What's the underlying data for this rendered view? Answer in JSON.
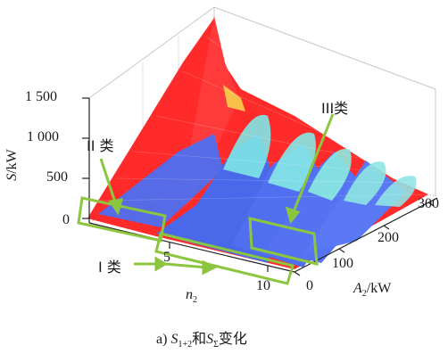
{
  "figure": {
    "caption_prefix": "a) ",
    "caption_s1": "S",
    "caption_s1_sub": "1+2",
    "caption_mid": "和",
    "caption_s2": "S",
    "caption_s2_sub": "Σ",
    "caption_suffix": "变化"
  },
  "axes": {
    "z_label_var": "S",
    "z_label_unit": "/kW",
    "x_label_var": "n",
    "x_label_sub": "2",
    "y_label_var": "A",
    "y_label_sub": "2",
    "y_label_unit": "/kW"
  },
  "annotations": {
    "class1": "I 类",
    "class2": "II 类",
    "class3": "III类"
  },
  "colors": {
    "surface_high": "#ff2b2b",
    "surface_low": "#4a6cf0",
    "ridge_cyan": "#7fe6e6",
    "box_green": "#8cc63f"
  },
  "chart_data": {
    "type": "surface3d",
    "zlabel": "S/kW",
    "xlabel": "n2",
    "ylabel": "A2/kW",
    "zticks": [
      "0",
      "500",
      "1 000",
      "1 500"
    ],
    "xticks": [
      "5",
      "10"
    ],
    "yticks": [
      "0",
      "100",
      "200",
      "300"
    ],
    "zlim": [
      0,
      1500
    ],
    "xlim": [
      0,
      10
    ],
    "ylim": [
      0,
      300
    ]
  }
}
